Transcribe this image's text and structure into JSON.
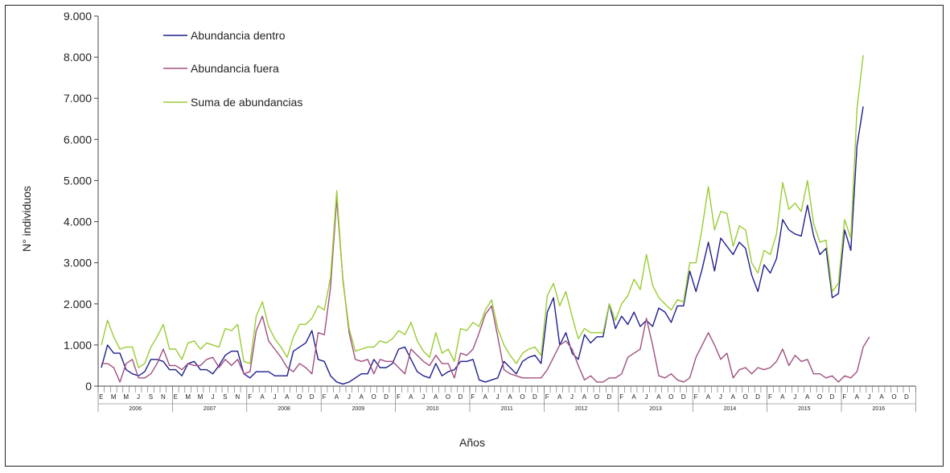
{
  "chart_data": {
    "type": "line",
    "xlabel": "Años",
    "ylabel": "N° individuos",
    "ylim": [
      0,
      9000
    ],
    "y_ticks": [
      "0",
      "1.000",
      "2.000",
      "3.000",
      "4.000",
      "5.000",
      "6.000",
      "7.000",
      "8.000",
      "9.000"
    ],
    "grid": false,
    "legend_position": "top-left",
    "years": [
      {
        "label": "2006",
        "month_labels": [
          "E",
          "M",
          "M",
          "J",
          "S",
          "N"
        ]
      },
      {
        "label": "2007",
        "month_labels": [
          "E",
          "M",
          "M",
          "J",
          "S",
          "N"
        ]
      },
      {
        "label": "2008",
        "month_labels": [
          "F",
          "A",
          "J",
          "A",
          "O",
          "D"
        ]
      },
      {
        "label": "2009",
        "month_labels": [
          "F",
          "A",
          "J",
          "A",
          "O",
          "D"
        ]
      },
      {
        "label": "2010",
        "month_labels": [
          "F",
          "A",
          "J",
          "A",
          "O",
          "D"
        ]
      },
      {
        "label": "2011",
        "month_labels": [
          "F",
          "A",
          "J",
          "A",
          "O",
          "D"
        ]
      },
      {
        "label": "2012",
        "month_labels": [
          "F",
          "A",
          "J",
          "A",
          "O",
          "D"
        ]
      },
      {
        "label": "2013",
        "month_labels": [
          "F",
          "A",
          "J",
          "A",
          "O",
          "D"
        ]
      },
      {
        "label": "2014",
        "month_labels": [
          "F",
          "A",
          "J",
          "A",
          "O",
          "D"
        ]
      },
      {
        "label": "2015",
        "month_labels": [
          "F",
          "A",
          "J",
          "A",
          "O",
          "D"
        ]
      },
      {
        "label": "2016",
        "month_labels": [
          "F",
          "A",
          "J",
          "A",
          "O",
          "D"
        ]
      }
    ],
    "series": [
      {
        "name": "Abundancia dentro",
        "color": "#1f1f8f",
        "values": [
          450,
          1000,
          800,
          800,
          400,
          300,
          250,
          350,
          650,
          650,
          600,
          400,
          400,
          250,
          550,
          600,
          400,
          400,
          300,
          500,
          750,
          850,
          850,
          300,
          200,
          350,
          350,
          350,
          250,
          250,
          250,
          850,
          950,
          1050,
          1350,
          650,
          600,
          250,
          100,
          50,
          100,
          200,
          300,
          300,
          650,
          450,
          450,
          550,
          900,
          950,
          650,
          350,
          250,
          200,
          550,
          250,
          350,
          400,
          600,
          600,
          650,
          150,
          100,
          150,
          200,
          600,
          450,
          300,
          600,
          700,
          750,
          550,
          1800,
          2150,
          1000,
          1300,
          800,
          650,
          1250,
          1050,
          1200,
          1200,
          2000,
          1400,
          1700,
          1500,
          1800,
          1450,
          1600,
          1450,
          1900,
          1800,
          1550,
          1950,
          1950,
          2800,
          2300,
          2850,
          3500,
          2800,
          3600,
          3400,
          3200,
          3500,
          3350,
          2700,
          2300,
          2950,
          2750,
          3100,
          4050,
          3800,
          3700,
          3650,
          4400,
          3650,
          3200,
          3350,
          2150,
          2250,
          3800,
          3300,
          5850,
          6800
        ]
      },
      {
        "name": "Abundancia fuera",
        "color": "#a05080",
        "values": [
          550,
          550,
          450,
          100,
          550,
          650,
          200,
          200,
          300,
          550,
          900,
          500,
          500,
          400,
          550,
          500,
          500,
          650,
          700,
          450,
          650,
          500,
          650,
          300,
          350,
          1350,
          1700,
          1100,
          900,
          700,
          450,
          350,
          550,
          450,
          300,
          1300,
          1250,
          2400,
          4550,
          2600,
          1300,
          650,
          600,
          650,
          300,
          650,
          600,
          600,
          450,
          300,
          900,
          750,
          600,
          500,
          750,
          550,
          550,
          200,
          800,
          750,
          900,
          1300,
          1750,
          1950,
          1200,
          400,
          300,
          250,
          200,
          200,
          200,
          200,
          400,
          700,
          1000,
          1100,
          900,
          500,
          150,
          250,
          100,
          100,
          200,
          200,
          300,
          700,
          800,
          900,
          1650,
          1000,
          250,
          200,
          300,
          150,
          100,
          200,
          700,
          1000,
          1300,
          1000,
          650,
          800,
          200,
          400,
          450,
          300,
          450,
          400,
          450,
          600,
          900,
          500,
          750,
          600,
          650,
          300,
          300,
          200,
          250,
          100,
          250,
          200,
          350,
          950,
          1200
        ]
      },
      {
        "name": "Suma de abundancias",
        "color": "#99cc33",
        "values": [
          1000,
          1600,
          1200,
          900,
          950,
          950,
          450,
          550,
          950,
          1200,
          1500,
          900,
          900,
          650,
          1050,
          1100,
          900,
          1050,
          1000,
          950,
          1400,
          1350,
          1500,
          600,
          550,
          1700,
          2050,
          1450,
          1150,
          950,
          700,
          1200,
          1500,
          1500,
          1650,
          1950,
          1850,
          2650,
          4750,
          2550,
          1400,
          850,
          900,
          950,
          950,
          1100,
          1050,
          1150,
          1350,
          1250,
          1550,
          1100,
          850,
          700,
          1300,
          800,
          900,
          600,
          1400,
          1350,
          1550,
          1450,
          1850,
          2100,
          1400,
          1000,
          750,
          550,
          800,
          900,
          950,
          750,
          2200,
          2500,
          1950,
          2300,
          1700,
          1150,
          1400,
          1300,
          1300,
          1300,
          2000,
          1600,
          2000,
          2200,
          2600,
          2350,
          3200,
          2450,
          2150,
          2000,
          1850,
          2100,
          2050,
          3000,
          3000,
          3850,
          4850,
          3800,
          4250,
          4200,
          3400,
          3900,
          3800,
          3000,
          2750,
          3300,
          3200,
          3700,
          4950,
          4300,
          4450,
          4250,
          5000,
          3950,
          3500,
          3550,
          2300,
          2500,
          4050,
          3600,
          6750,
          8050
        ]
      }
    ]
  }
}
